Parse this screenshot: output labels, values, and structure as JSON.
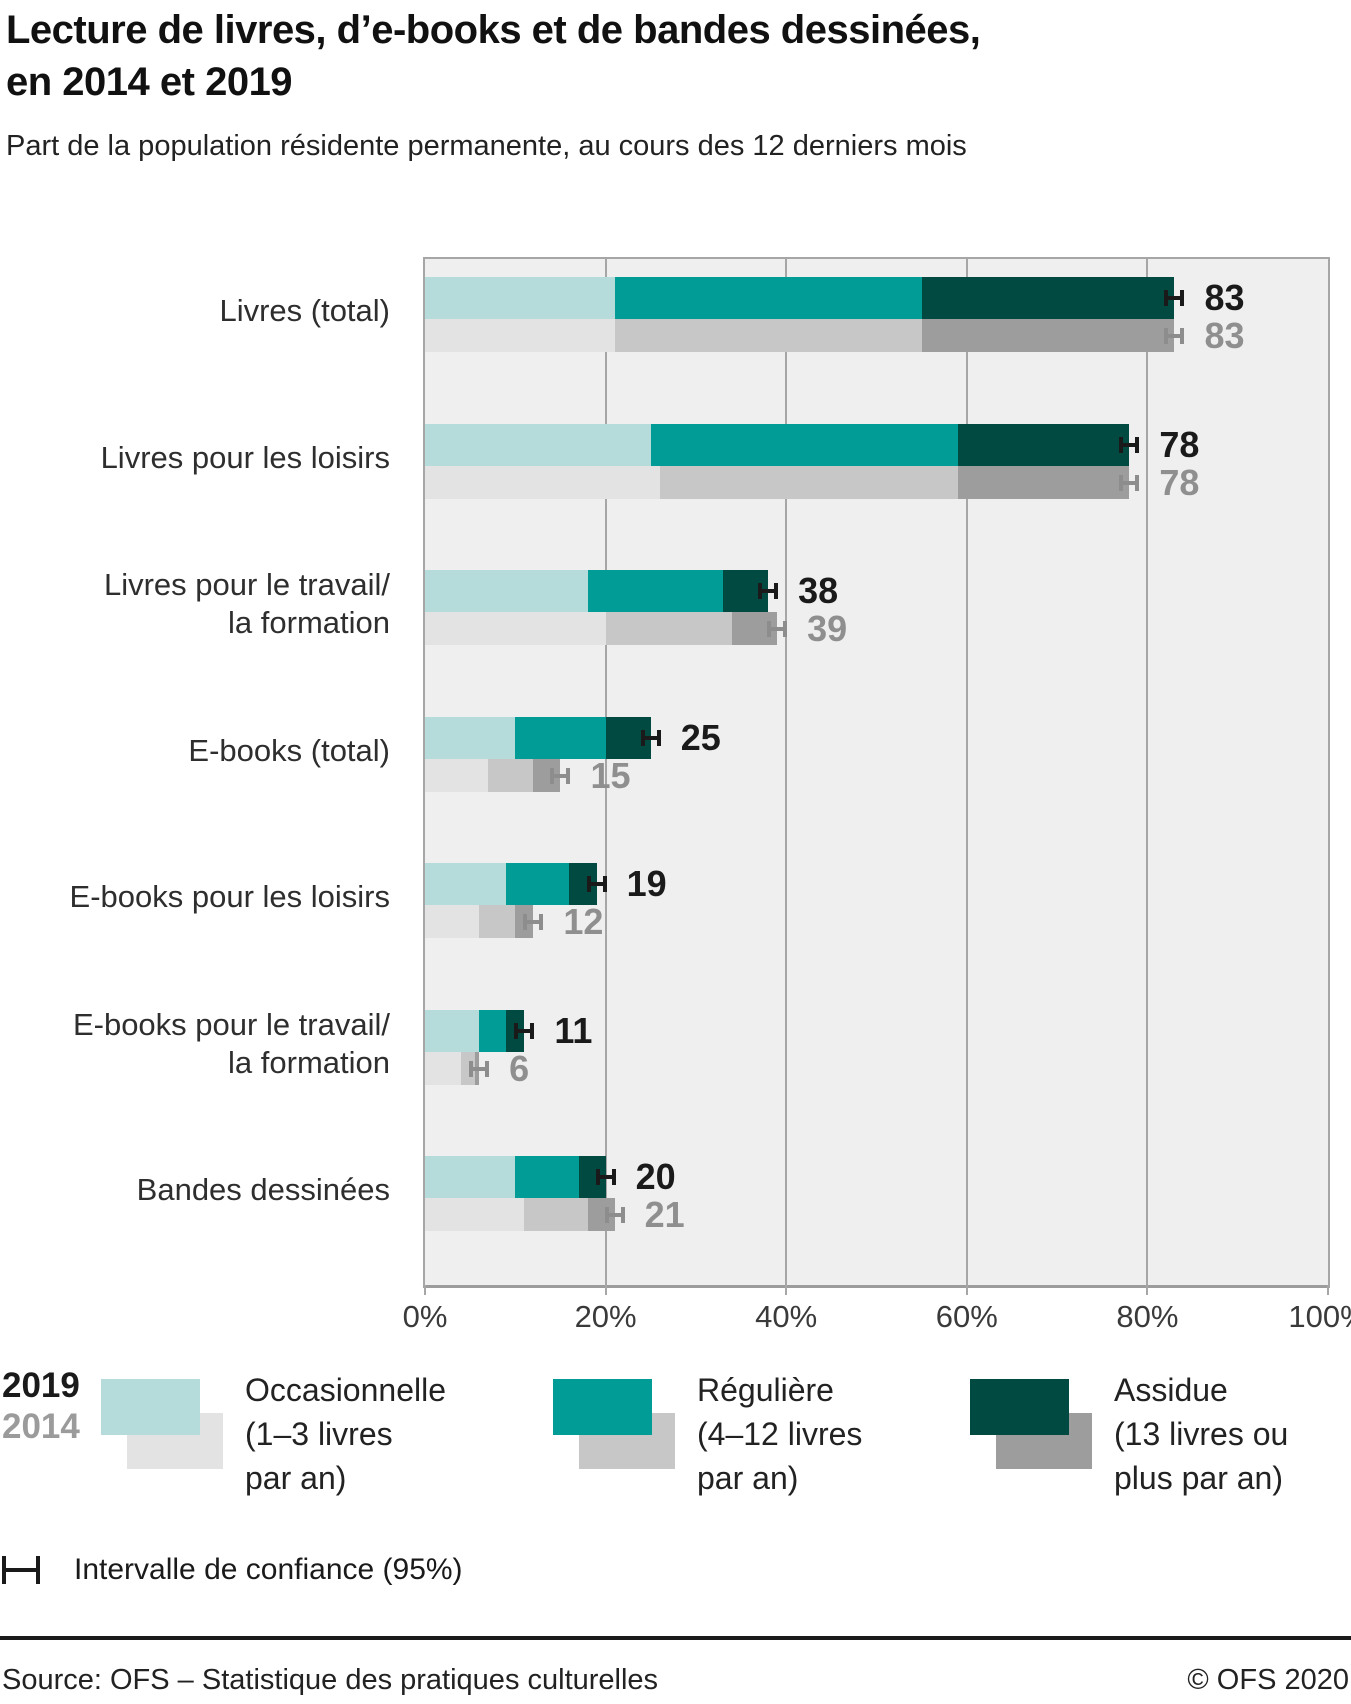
{
  "page": {
    "title": "Lecture de livres, d’e-books et de bandes dessinées,\nen 2014 et 2019",
    "subtitle": "Part de la population résidente permanente, au cours des 12 derniers mois"
  },
  "chart_data": {
    "type": "bar",
    "orientation": "horizontal",
    "stacked": true,
    "unit": "percent of permanent resident population",
    "xlim": [
      0,
      100
    ],
    "x_tick_labels": [
      "0%",
      "20%",
      "40%",
      "60%",
      "80%",
      "100%"
    ],
    "grid": true,
    "series_years": [
      "2019",
      "2014"
    ],
    "reading_levels": [
      "Occasionnelle (1–3 livres par an)",
      "Régulière (4–12 livres par an)",
      "Assidue (13 livres ou plus par an)"
    ],
    "error_bars": "95% confidence interval marker drawn at the end of every bar",
    "rows": [
      {
        "category": "Livres (total)",
        "y2019": {
          "segments": [
            21,
            34,
            28
          ],
          "total": 83
        },
        "y2014": {
          "segments": [
            21,
            34,
            28
          ],
          "total": 83
        }
      },
      {
        "category": "Livres pour les loisirs",
        "y2019": {
          "segments": [
            25,
            34,
            19
          ],
          "total": 78
        },
        "y2014": {
          "segments": [
            26,
            33,
            19
          ],
          "total": 78
        }
      },
      {
        "category": "Livres pour le travail/\nla formation",
        "y2019": {
          "segments": [
            18,
            15,
            5
          ],
          "total": 38
        },
        "y2014": {
          "segments": [
            20,
            14,
            5
          ],
          "total": 39
        }
      },
      {
        "category": "E-books (total)",
        "y2019": {
          "segments": [
            10,
            10,
            5
          ],
          "total": 25
        },
        "y2014": {
          "segments": [
            7,
            5,
            3
          ],
          "total": 15
        }
      },
      {
        "category": "E-books pour les loisirs",
        "y2019": {
          "segments": [
            9,
            7,
            3
          ],
          "total": 19
        },
        "y2014": {
          "segments": [
            6,
            4,
            2
          ],
          "total": 12
        }
      },
      {
        "category": "E-books pour le travail/\nla formation",
        "y2019": {
          "segments": [
            6,
            3,
            2
          ],
          "total": 11
        },
        "y2014": {
          "segments": [
            4,
            1.5,
            0.5
          ],
          "total": 6
        }
      },
      {
        "category": "Bandes dessinées",
        "y2019": {
          "segments": [
            10,
            7,
            3
          ],
          "total": 20
        },
        "y2014": {
          "segments": [
            11,
            7,
            3
          ],
          "total": 21
        }
      }
    ]
  },
  "legend": {
    "year_2019": "2019",
    "year_2014": "2014",
    "items": [
      {
        "label": "Occasionnelle\n(1–3 livres\npar an)",
        "color_2019": "#b5dcda",
        "color_2014": "#e3e3e3"
      },
      {
        "label": "Régulière\n(4–12 livres\npar an)",
        "color_2019": "#009c95",
        "color_2014": "#c7c7c7"
      },
      {
        "label": "Assidue\n(13 livres ou\nplus par an)",
        "color_2019": "#014a42",
        "color_2014": "#9d9d9d"
      }
    ],
    "ci_label": "Intervalle de confiance (95%)"
  },
  "footer": {
    "source": "Source: OFS – Statistique des pratiques culturelles",
    "copyright": "© OFS 2020"
  },
  "colors": {
    "plot_bg": "#efefef",
    "grid": "#a6a6a6",
    "bar_2019": [
      "#b5dcda",
      "#009c95",
      "#014a42"
    ],
    "bar_2014": [
      "#e3e3e3",
      "#c7c7c7",
      "#9d9d9d"
    ],
    "value_label_2019": "#1a1a1a",
    "value_label_2014": "#8f8f8f",
    "whisker_2019": "#1a1a1a",
    "whisker_2014": "#8d8d8d"
  }
}
